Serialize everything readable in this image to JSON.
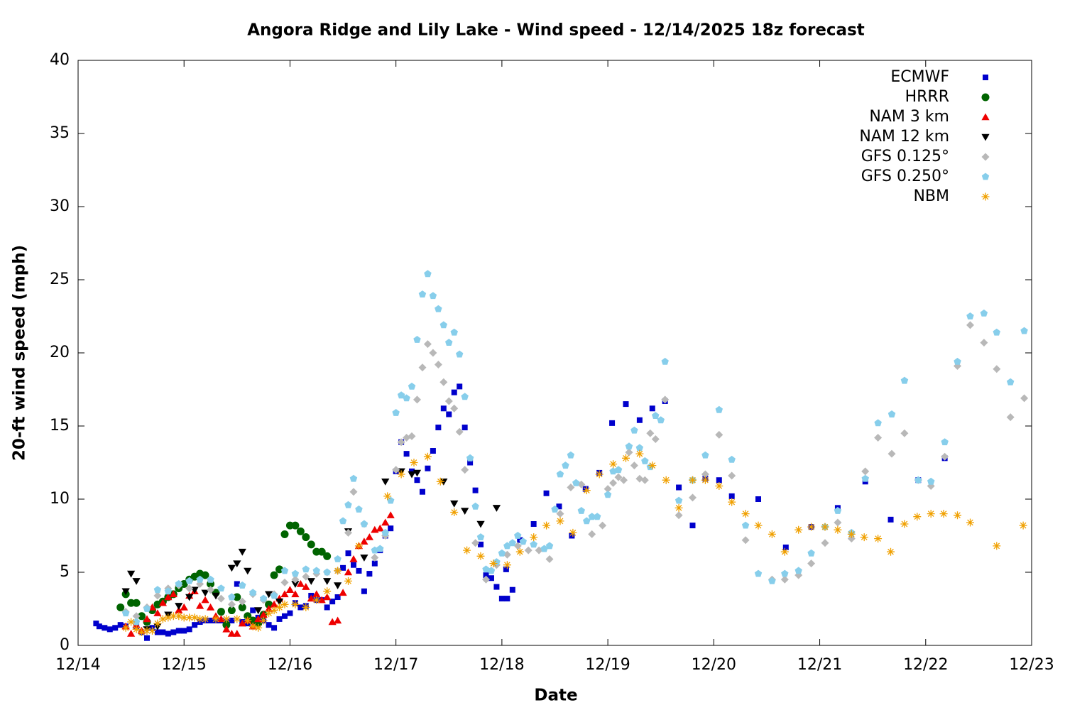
{
  "chart_data": {
    "type": "scatter",
    "title": "Angora Ridge and Lily Lake - Wind speed - 12/14/2025 18z forecast",
    "x_label": "Date",
    "y_label": "20-ft wind speed (mph)",
    "xlim": [
      14,
      23
    ],
    "ylim": [
      0,
      40
    ],
    "xticks": [
      {
        "value": 14,
        "label": "12/14"
      },
      {
        "value": 15,
        "label": "12/15"
      },
      {
        "value": 16,
        "label": "12/16"
      },
      {
        "value": 17,
        "label": "12/17"
      },
      {
        "value": 18,
        "label": "12/18"
      },
      {
        "value": 19,
        "label": "12/19"
      },
      {
        "value": 20,
        "label": "12/20"
      },
      {
        "value": 21,
        "label": "12/21"
      },
      {
        "value": 22,
        "label": "12/22"
      },
      {
        "value": 23,
        "label": "12/23"
      }
    ],
    "yticks": [
      0,
      5,
      10,
      15,
      20,
      25,
      30,
      35,
      40
    ],
    "grid": false,
    "legend": "top-right",
    "series": [
      {
        "name": "ECMWF",
        "color": "#0000cc",
        "marker": "square",
        "x": [
          14.17,
          14.2,
          14.25,
          14.3,
          14.35,
          14.4,
          14.45,
          14.5,
          14.55,
          14.6,
          14.65,
          14.7,
          14.75,
          14.8,
          14.85,
          14.9,
          14.95,
          15.0,
          15.05,
          15.1,
          15.15,
          15.2,
          15.25,
          15.3,
          15.35,
          15.4,
          15.45,
          15.5,
          15.55,
          15.6,
          15.65,
          15.7,
          15.75,
          15.8,
          15.85,
          15.9,
          15.95,
          16.0,
          16.05,
          16.1,
          16.15,
          16.2,
          16.25,
          16.3,
          16.35,
          16.4,
          16.45,
          16.5,
          16.55,
          16.6,
          16.65,
          16.7,
          16.75,
          16.8,
          16.85,
          16.9,
          16.95,
          17.0,
          17.05,
          17.1,
          17.15,
          17.2,
          17.25,
          17.3,
          17.35,
          17.4,
          17.45,
          17.5,
          17.55,
          17.6,
          17.65,
          17.7,
          17.75,
          17.8,
          17.85,
          17.9,
          17.95,
          18.0,
          18.05,
          18.1,
          18.04,
          18.17,
          18.3,
          18.42,
          18.54,
          18.66,
          18.79,
          18.92,
          19.04,
          19.17,
          19.3,
          19.42,
          19.54,
          19.67,
          19.8,
          19.92,
          20.05,
          20.17,
          20.42,
          20.68,
          20.92,
          21.17,
          21.43,
          21.67,
          21.93,
          22.18
        ],
        "values": [
          1.5,
          1.3,
          1.2,
          1.1,
          1.2,
          1.4,
          1.3,
          2.9,
          1.3,
          0.9,
          0.5,
          1.2,
          0.9,
          0.9,
          0.8,
          0.9,
          1.0,
          1.0,
          1.1,
          1.4,
          1.6,
          1.7,
          1.7,
          1.7,
          1.7,
          1.6,
          1.7,
          4.2,
          1.6,
          1.5,
          2.4,
          1.9,
          1.7,
          1.4,
          1.2,
          1.8,
          2.0,
          2.2,
          2.9,
          2.6,
          2.7,
          3.4,
          3.1,
          3.1,
          2.6,
          3.0,
          3.3,
          5.3,
          6.3,
          5.5,
          5.1,
          3.7,
          4.9,
          5.6,
          6.5,
          7.5,
          8.0,
          11.9,
          13.9,
          13.1,
          11.9,
          11.3,
          10.5,
          12.1,
          13.3,
          14.9,
          16.2,
          15.8,
          17.3,
          17.7,
          14.9,
          12.5,
          10.6,
          6.9,
          4.8,
          4.6,
          4.0,
          3.2,
          3.2,
          3.8,
          5.2,
          7.2,
          8.3,
          10.4,
          9.5,
          7.5,
          10.7,
          11.8,
          15.2,
          16.5,
          15.4,
          16.2,
          16.7,
          10.8,
          8.2,
          11.4,
          11.3,
          10.2,
          10.0,
          6.7,
          8.1,
          9.4,
          11.2,
          8.6,
          11.3,
          12.8
        ]
      },
      {
        "name": "HRRR",
        "color": "#006400",
        "marker": "circle",
        "x": [
          14.4,
          14.45,
          14.5,
          14.55,
          14.6,
          14.65,
          14.7,
          14.75,
          14.8,
          14.85,
          14.9,
          14.95,
          15.0,
          15.05,
          15.1,
          15.15,
          15.2,
          15.25,
          15.3,
          15.35,
          15.4,
          15.45,
          15.5,
          15.55,
          15.6,
          15.65,
          15.7,
          15.75,
          15.8,
          15.85,
          15.9,
          15.95,
          16.0,
          16.05,
          16.1,
          16.15,
          16.2,
          16.25,
          16.3,
          16.35
        ],
        "values": [
          2.6,
          3.5,
          2.9,
          2.9,
          2.0,
          1.6,
          2.4,
          2.8,
          3.0,
          3.3,
          3.5,
          3.9,
          4.2,
          4.5,
          4.7,
          4.9,
          4.8,
          4.2,
          3.6,
          2.3,
          1.4,
          2.4,
          3.3,
          2.6,
          2.0,
          1.7,
          1.5,
          2.1,
          2.8,
          4.8,
          5.2,
          7.6,
          8.2,
          8.2,
          7.8,
          7.4,
          6.9,
          6.4,
          6.4,
          6.1
        ]
      },
      {
        "name": "NAM 3 km",
        "color": "#ee0000",
        "marker": "triangle-up",
        "x": [
          14.45,
          14.5,
          14.55,
          14.6,
          14.65,
          14.7,
          14.75,
          14.8,
          14.85,
          14.9,
          14.95,
          15.0,
          15.05,
          15.1,
          15.15,
          15.2,
          15.25,
          15.3,
          15.35,
          15.4,
          15.45,
          15.5,
          15.55,
          15.6,
          15.65,
          15.7,
          15.75,
          15.8,
          15.85,
          15.9,
          15.95,
          16.0,
          16.05,
          16.1,
          16.15,
          16.2,
          16.25,
          16.3,
          16.35,
          16.4,
          16.45,
          16.5,
          16.55,
          16.6,
          16.65,
          16.7,
          16.75,
          16.8,
          16.85,
          16.9,
          16.95
        ],
        "values": [
          1.3,
          0.8,
          1.4,
          1.0,
          1.8,
          2.6,
          2.2,
          2.9,
          3.3,
          3.5,
          2.4,
          2.6,
          3.4,
          3.7,
          2.7,
          3.1,
          2.6,
          2.0,
          1.8,
          1.1,
          0.8,
          0.8,
          1.5,
          1.7,
          1.3,
          1.8,
          2.1,
          2.5,
          2.8,
          3.2,
          3.5,
          3.8,
          3.5,
          4.2,
          4.0,
          3.2,
          3.5,
          3.1,
          3.3,
          1.6,
          1.7,
          3.6,
          5.0,
          5.9,
          6.8,
          7.1,
          7.4,
          7.9,
          8.0,
          8.4,
          8.9
        ]
      },
      {
        "name": "NAM 12 km",
        "color": "#000000",
        "marker": "triangle-down",
        "x": [
          14.45,
          14.5,
          14.55,
          14.65,
          14.75,
          14.85,
          14.95,
          15.05,
          15.1,
          15.2,
          15.3,
          15.45,
          15.5,
          15.55,
          15.6,
          15.7,
          15.8,
          15.9,
          16.05,
          16.2,
          16.35,
          16.45,
          16.55,
          16.7,
          16.9,
          17.05,
          17.15,
          17.2,
          17.45,
          17.55,
          17.65,
          17.8,
          17.95
        ],
        "values": [
          3.7,
          4.9,
          4.4,
          1.1,
          1.3,
          2.1,
          2.7,
          3.3,
          3.8,
          3.6,
          3.4,
          5.3,
          5.6,
          6.4,
          5.1,
          2.4,
          3.5,
          3.0,
          4.2,
          4.4,
          4.4,
          4.1,
          7.8,
          6.0,
          11.2,
          11.9,
          11.7,
          11.8,
          11.2,
          9.7,
          9.2,
          8.3,
          9.4
        ]
      },
      {
        "name": "GFS 0.125°",
        "color": "#b8b8b8",
        "marker": "diamond",
        "x": [
          14.45,
          14.55,
          14.65,
          14.75,
          14.85,
          14.95,
          15.05,
          15.15,
          15.25,
          15.35,
          15.45,
          15.55,
          15.65,
          15.75,
          15.85,
          15.95,
          16.05,
          16.15,
          16.25,
          16.35,
          16.45,
          16.55,
          16.6,
          16.7,
          16.8,
          16.9,
          17.0,
          17.05,
          17.1,
          17.15,
          17.2,
          17.25,
          17.3,
          17.35,
          17.4,
          17.45,
          17.5,
          17.55,
          17.6,
          17.65,
          17.75,
          17.85,
          17.95,
          18.05,
          18.15,
          18.25,
          18.35,
          18.45,
          18.55,
          18.65,
          18.75,
          18.85,
          18.95,
          19.0,
          19.05,
          19.1,
          19.15,
          19.2,
          19.25,
          19.3,
          19.35,
          19.4,
          19.45,
          19.54,
          19.67,
          19.8,
          19.92,
          20.05,
          20.17,
          20.3,
          20.55,
          20.67,
          20.8,
          20.92,
          21.05,
          21.17,
          21.3,
          21.43,
          21.55,
          21.68,
          21.8,
          21.93,
          22.05,
          22.18,
          22.3,
          22.42,
          22.55,
          22.67,
          22.8,
          22.93
        ],
        "values": [
          2.3,
          2.0,
          2.6,
          3.4,
          3.9,
          4.1,
          3.9,
          4.2,
          3.8,
          3.2,
          2.8,
          3.0,
          3.5,
          3.1,
          3.5,
          4.3,
          4.5,
          4.7,
          4.9,
          5.0,
          5.1,
          7.7,
          10.5,
          8.3,
          6.0,
          7.5,
          12.0,
          13.9,
          14.2,
          14.3,
          16.8,
          19.0,
          20.6,
          20.0,
          19.2,
          18.0,
          16.7,
          16.2,
          14.6,
          12.0,
          7.0,
          4.5,
          5.5,
          6.2,
          6.8,
          6.5,
          6.5,
          5.9,
          9.0,
          10.8,
          11.0,
          7.6,
          8.2,
          10.7,
          11.1,
          11.5,
          11.3,
          13.2,
          12.3,
          11.4,
          11.3,
          14.5,
          14.1,
          16.8,
          8.9,
          10.1,
          11.7,
          14.4,
          11.6,
          7.2,
          4.5,
          4.5,
          4.8,
          5.6,
          7.0,
          8.4,
          7.3,
          11.9,
          14.2,
          13.1,
          14.5,
          11.3,
          10.9,
          12.9,
          19.1,
          21.9,
          20.7,
          18.9,
          15.6,
          16.9
        ]
      },
      {
        "name": "GFS 0.250°",
        "color": "#87ceeb",
        "marker": "pentagon",
        "x": [
          14.45,
          14.55,
          14.65,
          14.75,
          14.85,
          14.95,
          15.05,
          15.15,
          15.25,
          15.35,
          15.45,
          15.55,
          15.65,
          15.75,
          15.85,
          15.95,
          16.05,
          16.15,
          16.25,
          16.35,
          16.45,
          16.5,
          16.55,
          16.6,
          16.65,
          16.7,
          16.8,
          16.85,
          16.9,
          16.95,
          17.0,
          17.05,
          17.1,
          17.15,
          17.2,
          17.25,
          17.3,
          17.35,
          17.4,
          17.45,
          17.5,
          17.55,
          17.6,
          17.65,
          17.7,
          17.75,
          17.8,
          17.85,
          17.9,
          17.95,
          18.0,
          18.05,
          18.1,
          18.15,
          18.2,
          18.3,
          18.4,
          18.45,
          18.5,
          18.55,
          18.6,
          18.65,
          18.7,
          18.75,
          18.8,
          18.85,
          18.9,
          19.0,
          19.05,
          19.1,
          19.2,
          19.25,
          19.3,
          19.35,
          19.4,
          19.45,
          19.5,
          19.54,
          19.67,
          19.8,
          19.92,
          20.05,
          20.17,
          20.3,
          20.42,
          20.55,
          20.67,
          20.8,
          20.92,
          21.05,
          21.17,
          21.3,
          21.43,
          21.55,
          21.68,
          21.8,
          21.93,
          22.05,
          22.18,
          22.3,
          22.42,
          22.55,
          22.67,
          22.8,
          22.93
        ],
        "values": [
          2.2,
          1.6,
          2.5,
          3.8,
          3.7,
          4.2,
          4.4,
          4.5,
          4.5,
          3.9,
          3.3,
          4.1,
          3.6,
          3.2,
          3.4,
          5.1,
          4.9,
          5.2,
          5.1,
          5.0,
          5.9,
          8.5,
          9.6,
          11.4,
          9.3,
          8.3,
          6.5,
          6.6,
          7.7,
          9.9,
          15.9,
          17.1,
          16.9,
          17.7,
          20.9,
          24.0,
          25.4,
          23.9,
          23.0,
          21.9,
          20.7,
          21.4,
          19.9,
          17.0,
          12.8,
          9.5,
          7.4,
          5.2,
          5.1,
          5.7,
          6.3,
          6.8,
          7.0,
          7.5,
          7.1,
          6.9,
          6.6,
          6.8,
          9.3,
          11.7,
          12.3,
          13.0,
          11.1,
          9.2,
          8.5,
          8.8,
          8.8,
          10.3,
          11.9,
          12.0,
          13.6,
          14.7,
          13.5,
          12.6,
          12.2,
          15.7,
          15.4,
          19.4,
          9.9,
          11.3,
          13.0,
          16.1,
          12.7,
          8.2,
          4.9,
          4.4,
          4.9,
          5.1,
          6.3,
          8.1,
          9.2,
          7.7,
          11.4,
          15.2,
          15.8,
          18.1,
          11.3,
          11.2,
          13.9,
          19.4,
          22.5,
          22.7,
          21.4,
          18.0,
          21.5
        ]
      },
      {
        "name": "NBM",
        "color": "#f0a000",
        "marker": "asterisk",
        "x": [
          14.45,
          14.5,
          14.55,
          14.6,
          14.65,
          14.7,
          14.75,
          14.8,
          14.85,
          14.9,
          14.95,
          15.0,
          15.05,
          15.1,
          15.15,
          15.2,
          15.3,
          15.4,
          15.5,
          15.6,
          15.65,
          15.7,
          15.75,
          15.8,
          15.85,
          15.9,
          15.95,
          16.05,
          16.15,
          16.25,
          16.35,
          16.45,
          16.55,
          16.65,
          16.92,
          17.05,
          17.17,
          17.3,
          17.42,
          17.55,
          17.67,
          17.8,
          17.92,
          18.05,
          18.17,
          18.3,
          18.42,
          18.55,
          18.67,
          18.8,
          18.92,
          19.05,
          19.17,
          19.3,
          19.42,
          19.55,
          19.67,
          19.8,
          19.92,
          20.05,
          20.17,
          20.3,
          20.42,
          20.55,
          20.67,
          20.8,
          20.92,
          21.05,
          21.17,
          21.3,
          21.42,
          21.55,
          21.67,
          21.8,
          21.92,
          22.05,
          22.17,
          22.3,
          22.42,
          22.67,
          22.92
        ],
        "values": [
          1.2,
          1.6,
          1.1,
          0.9,
          1.0,
          1.0,
          1.5,
          1.8,
          1.9,
          2.0,
          2.0,
          1.9,
          1.9,
          1.9,
          1.8,
          1.8,
          1.8,
          1.8,
          1.8,
          1.7,
          1.3,
          1.2,
          1.7,
          2.2,
          2.4,
          2.6,
          2.8,
          2.8,
          2.6,
          3.1,
          3.7,
          5.1,
          4.4,
          6.8,
          10.2,
          11.7,
          12.5,
          12.9,
          11.2,
          9.1,
          6.5,
          6.1,
          5.6,
          5.5,
          6.4,
          7.4,
          8.2,
          8.5,
          7.7,
          10.6,
          11.7,
          12.4,
          12.8,
          13.1,
          12.3,
          11.3,
          9.4,
          11.3,
          11.3,
          10.9,
          9.8,
          9.0,
          8.2,
          7.6,
          6.4,
          7.9,
          8.1,
          8.1,
          7.9,
          7.6,
          7.4,
          7.3,
          6.4,
          8.3,
          8.8,
          9.0,
          9.0,
          8.9,
          8.4,
          6.8,
          8.2
        ]
      }
    ]
  }
}
